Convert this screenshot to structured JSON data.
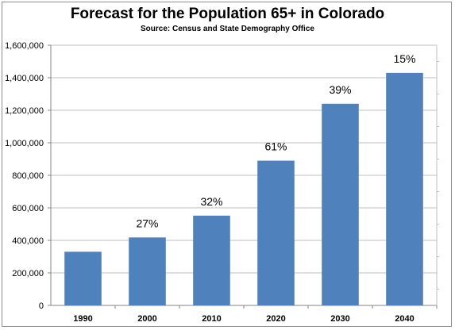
{
  "chart_data": {
    "type": "bar",
    "title": "Forecast for the Population 65+ in Colorado",
    "subtitle": "Source: Census and State Demography Office",
    "categories": [
      "1990",
      "2000",
      "2010",
      "2020",
      "2030",
      "2040"
    ],
    "values": [
      330000,
      418000,
      552000,
      890000,
      1240000,
      1430000
    ],
    "data_labels": [
      "",
      "27%",
      "32%",
      "61%",
      "39%",
      "15%"
    ],
    "y_ticks": [
      "0",
      "200,000",
      "400,000",
      "600,000",
      "800,000",
      "1,000,000",
      "1,200,000",
      "1,400,000",
      "1,600,000"
    ],
    "ylim": [
      0,
      1600000
    ],
    "xlabel": "",
    "ylabel": "",
    "grid": true,
    "legend": "none",
    "colors": {
      "bar": "#4f81bd",
      "grid": "#bfbfbf",
      "axis": "#868686"
    }
  }
}
